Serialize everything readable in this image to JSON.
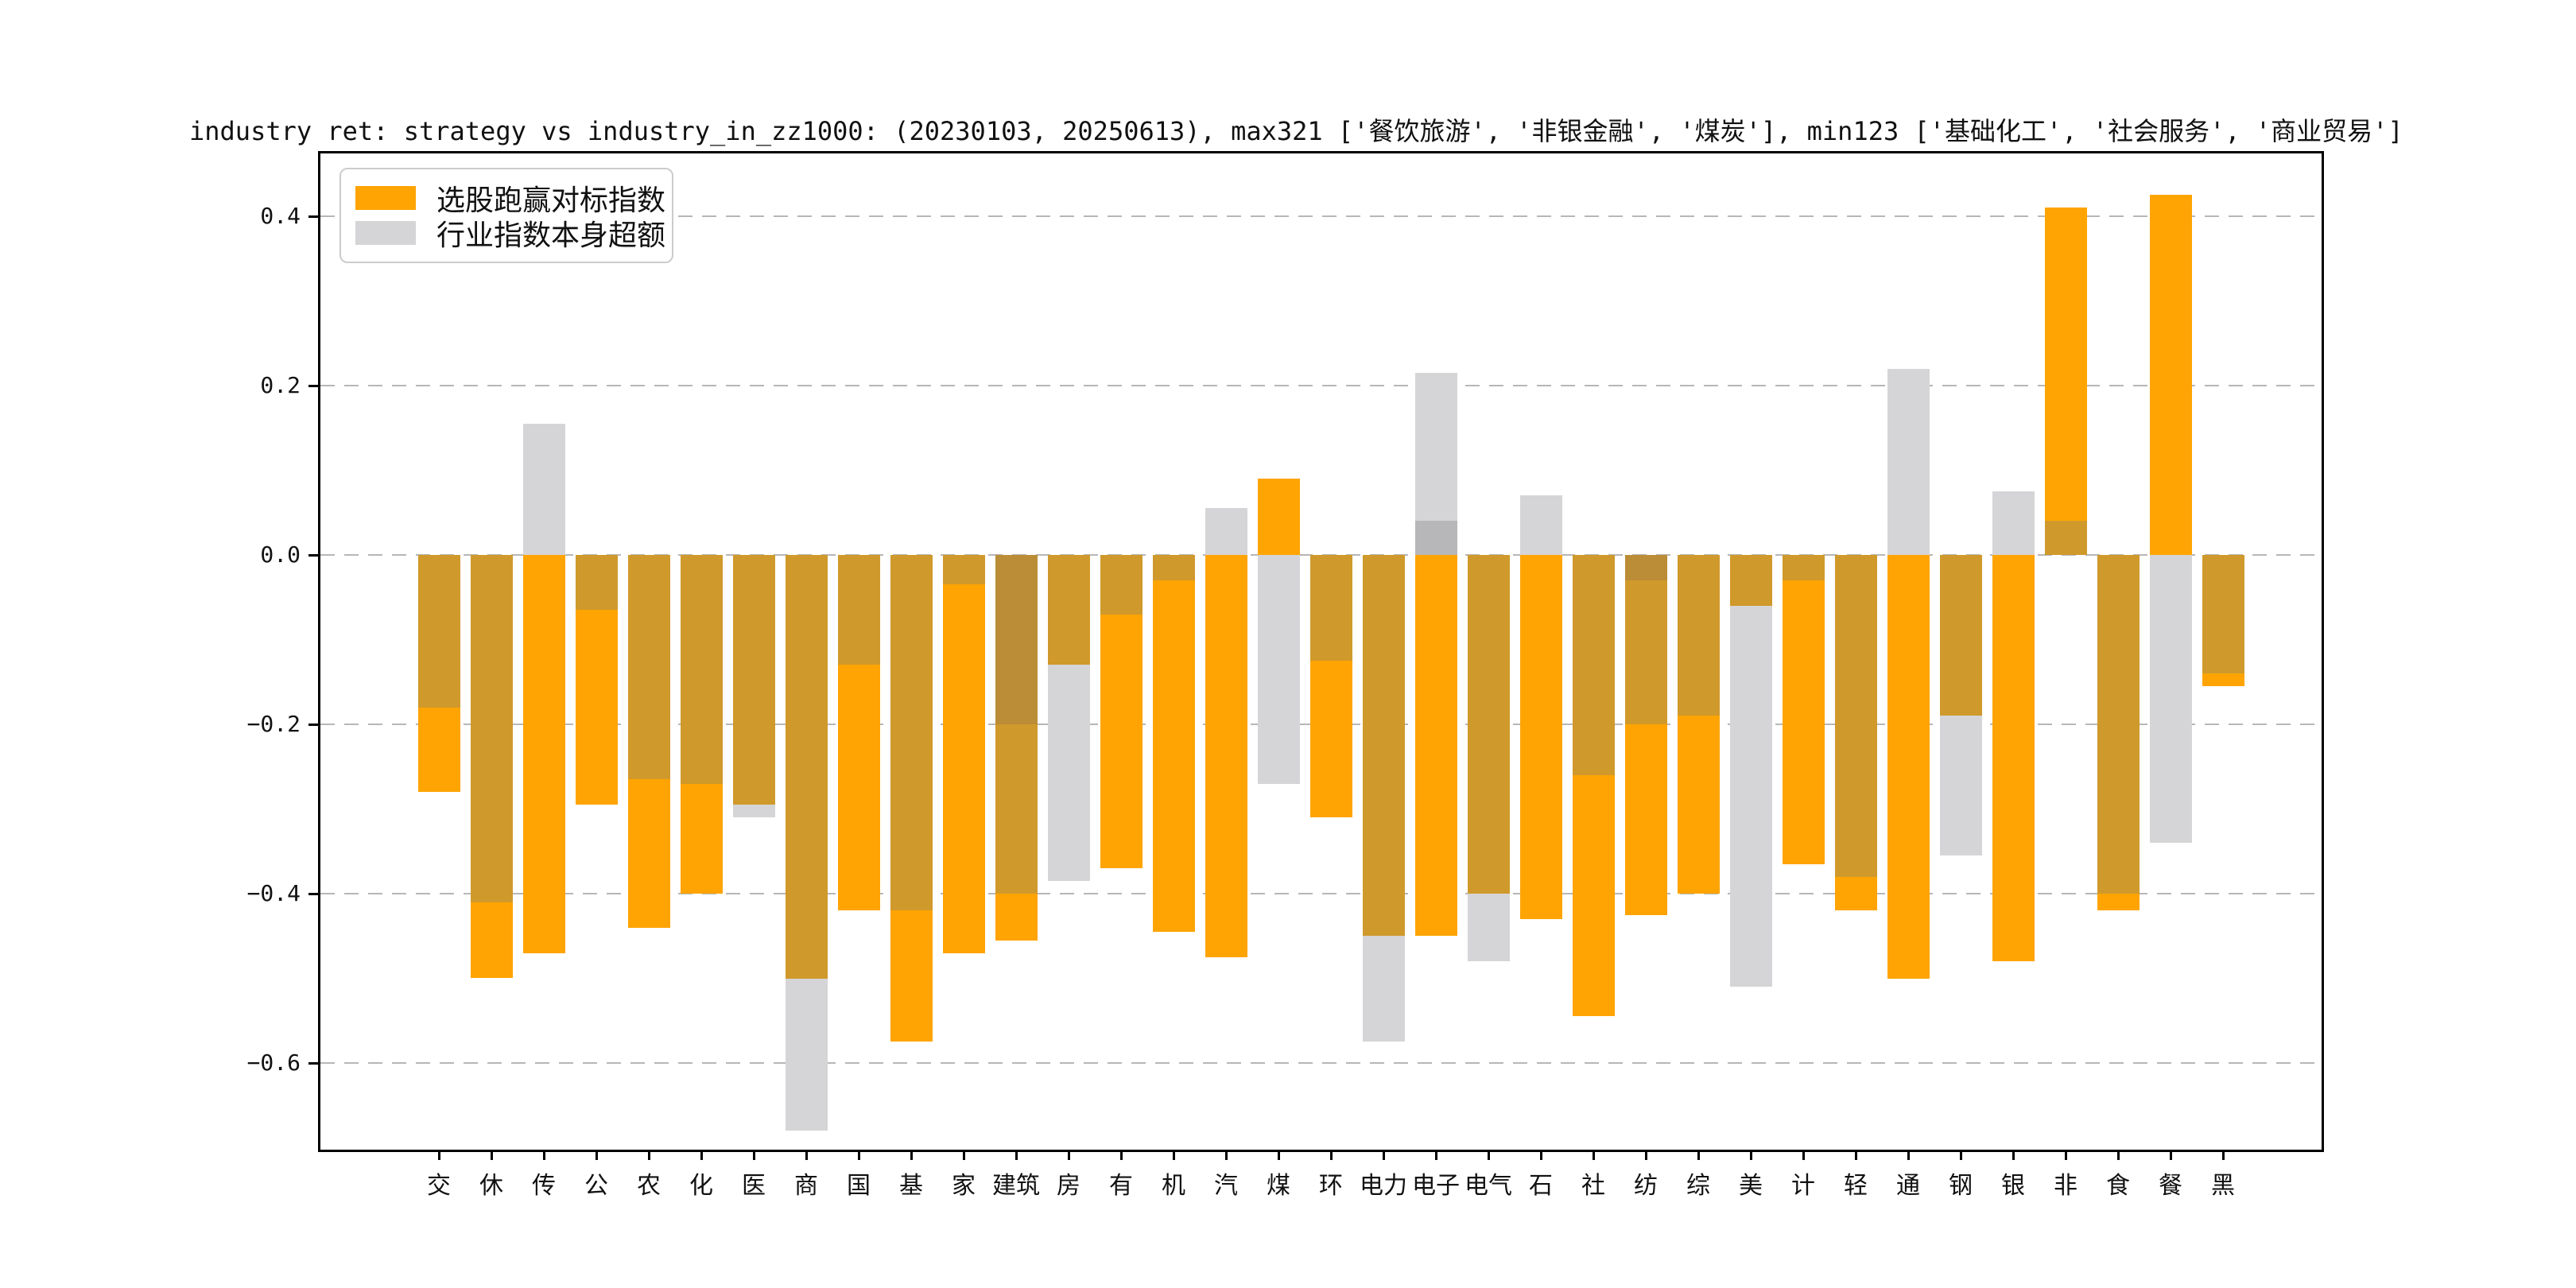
{
  "title": "industry ret: strategy vs industry_in_zz1000: (20230103, 20250613), max321 ['餐饮旅游', '非银金融', '煤炭'], min123 ['基础化工', '社会服务', '商业贸易']",
  "legend": {
    "items": [
      {
        "label": "选股跑赢对标指数",
        "color": "#FFA402"
      },
      {
        "label": "行业指数本身超额",
        "color": "#D5D5D7"
      }
    ]
  },
  "y_axis": {
    "tick_labels": [
      "0.4",
      "0.2",
      "0.0",
      "−0.2",
      "−0.4",
      "−0.6"
    ],
    "tick_values": [
      0.4,
      0.2,
      0.0,
      -0.2,
      -0.4,
      -0.6
    ]
  },
  "colors": {
    "orange": "#FFA402",
    "gray": "#D5D5D7",
    "overlap_tan": "#D0992B",
    "overlay_dark_tan": "#BB8D37",
    "overlay_dark_gray": "#B7B7BA",
    "grid": "#B7B7B7",
    "spine": "#000000"
  },
  "chart_data": {
    "type": "bar",
    "title": "industry ret: strategy vs industry_in_zz1000: (20230103, 20250613), max321 ['餐饮旅游', '非银金融', '煤炭'], min123 ['基础化工', '社会服务', '商业贸易']",
    "categories": [
      "交",
      "休",
      "传",
      "公",
      "农",
      "化",
      "医",
      "商",
      "国",
      "基",
      "家",
      "建筑",
      "房",
      "有",
      "机",
      "汽",
      "煤",
      "环",
      "电力",
      "电子",
      "电气",
      "石",
      "社",
      "纺",
      "综",
      "美",
      "计",
      "轻",
      "通",
      "钢",
      "银",
      "非",
      "食",
      "餐",
      "黑"
    ],
    "series": [
      {
        "name": "选股跑赢对标指数",
        "color": "#FFA402",
        "values": [
          -0.28,
          -0.5,
          -0.47,
          -0.295,
          -0.44,
          -0.4,
          -0.295,
          -0.5,
          -0.42,
          -0.575,
          -0.47,
          -0.455,
          -0.13,
          -0.37,
          -0.445,
          -0.475,
          0.09,
          -0.31,
          -0.45,
          -0.45,
          -0.4,
          -0.43,
          -0.545,
          -0.425,
          -0.4,
          -0.06,
          -0.365,
          -0.42,
          -0.5,
          -0.19,
          -0.48,
          0.41,
          -0.42,
          0.425,
          -0.155
        ]
      },
      {
        "name": "行业指数本身超额",
        "color": "#D5D5D7",
        "values": [
          -0.18,
          -0.41,
          0.155,
          -0.065,
          -0.265,
          -0.27,
          -0.31,
          -0.68,
          -0.13,
          -0.42,
          -0.035,
          -0.4,
          -0.385,
          -0.07,
          -0.03,
          0.055,
          -0.27,
          -0.125,
          -0.575,
          0.215,
          -0.48,
          0.07,
          -0.26,
          -0.2,
          -0.19,
          -0.51,
          -0.03,
          -0.38,
          0.22,
          -0.355,
          0.075,
          0.04,
          -0.4,
          -0.34,
          -0.14
        ]
      },
      {
        "name": "重叠加深色带",
        "color": "overlay",
        "values": [
          null,
          null,
          null,
          null,
          null,
          null,
          null,
          null,
          null,
          null,
          null,
          -0.2,
          null,
          null,
          null,
          null,
          null,
          null,
          null,
          0.04,
          null,
          null,
          null,
          -0.03,
          null,
          null,
          null,
          null,
          null,
          null,
          null,
          null,
          null,
          null,
          null
        ]
      }
    ],
    "ylim": [
      -0.7,
      0.47
    ],
    "ytick_values": [
      0.4,
      0.2,
      0.0,
      -0.2,
      -0.4,
      -0.6
    ],
    "grid": true,
    "grid_style": "dashed",
    "legend_position": "upper left",
    "overlap_rule": "same-sign regions of the two series blend to tan #D0992B; overlay bands darken the region between 0 and the overlay value"
  }
}
